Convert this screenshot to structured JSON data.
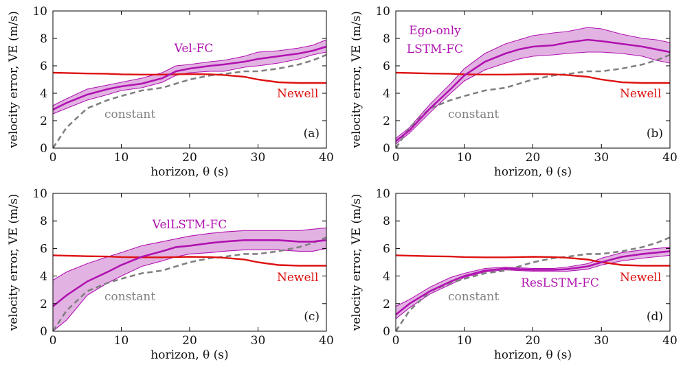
{
  "colors": {
    "model": "#b012b0",
    "band": "#e2b3e2",
    "newell": "#dd1111",
    "constant": "#808080"
  },
  "chart_data": [
    {
      "type": "line",
      "panel": "(a)",
      "xlabel": "horizon, θ (s)",
      "ylabel": "velocity error, VE (m/s)",
      "xlim": [
        0,
        40
      ],
      "ylim": [
        0,
        10
      ],
      "xticks": [
        0,
        10,
        20,
        30,
        40
      ],
      "yticks": [
        0,
        2,
        4,
        6,
        8,
        10
      ],
      "x": [
        0,
        2,
        5,
        8,
        10,
        13,
        16,
        18,
        20,
        23,
        25,
        28,
        30,
        33,
        36,
        38,
        40
      ],
      "series": [
        {
          "name": "Vel-FC",
          "role": "model",
          "values": [
            2.8,
            3.3,
            3.9,
            4.3,
            4.5,
            4.7,
            5.1,
            5.6,
            5.8,
            6.0,
            6.1,
            6.3,
            6.5,
            6.7,
            6.9,
            7.1,
            7.4
          ],
          "lower": [
            2.5,
            2.9,
            3.5,
            3.9,
            4.2,
            4.4,
            4.8,
            5.3,
            5.5,
            5.6,
            5.6,
            5.9,
            6.0,
            6.2,
            6.5,
            6.8,
            7.0
          ],
          "upper": [
            3.1,
            3.6,
            4.3,
            4.6,
            4.8,
            5.1,
            5.5,
            6.0,
            6.1,
            6.3,
            6.4,
            6.7,
            7.0,
            7.1,
            7.3,
            7.5,
            7.9
          ]
        },
        {
          "name": "Newell",
          "role": "newell",
          "values": [
            5.5,
            5.48,
            5.44,
            5.42,
            5.38,
            5.36,
            5.36,
            5.38,
            5.4,
            5.38,
            5.33,
            5.2,
            5.0,
            4.8,
            4.75,
            4.75,
            4.75
          ]
        },
        {
          "name": "constant",
          "role": "constant",
          "values": [
            0.0,
            1.5,
            2.9,
            3.5,
            3.8,
            4.2,
            4.4,
            4.7,
            5.0,
            5.3,
            5.4,
            5.6,
            5.6,
            5.8,
            6.1,
            6.4,
            6.8
          ]
        }
      ]
    },
    {
      "type": "line",
      "panel": "(b)",
      "xlabel": "horizon, θ (s)",
      "ylabel": "velocity error, VE (m/s)",
      "xlim": [
        0,
        40
      ],
      "ylim": [
        0,
        10
      ],
      "xticks": [
        0,
        10,
        20,
        30,
        40
      ],
      "yticks": [
        0,
        2,
        4,
        6,
        8,
        10
      ],
      "x": [
        0,
        2,
        5,
        8,
        10,
        13,
        16,
        18,
        20,
        23,
        25,
        28,
        30,
        33,
        36,
        38,
        40
      ],
      "series": [
        {
          "name": "Ego-only LSTM-FC",
          "role": "model",
          "values": [
            0.5,
            1.3,
            2.9,
            4.3,
            5.3,
            6.3,
            6.9,
            7.2,
            7.4,
            7.5,
            7.7,
            7.9,
            7.8,
            7.6,
            7.4,
            7.2,
            7.0
          ],
          "lower": [
            0.3,
            1.1,
            2.6,
            4.0,
            4.9,
            5.7,
            6.2,
            6.5,
            6.7,
            6.8,
            6.9,
            7.0,
            7.0,
            6.9,
            6.7,
            6.4,
            6.2
          ],
          "upper": [
            0.7,
            1.5,
            3.2,
            4.7,
            5.8,
            6.9,
            7.6,
            7.9,
            8.2,
            8.4,
            8.5,
            8.8,
            8.7,
            8.3,
            8.0,
            7.9,
            7.7
          ]
        },
        {
          "name": "Newell",
          "role": "newell",
          "values": [
            5.5,
            5.48,
            5.44,
            5.42,
            5.38,
            5.36,
            5.36,
            5.38,
            5.4,
            5.38,
            5.33,
            5.2,
            5.0,
            4.8,
            4.75,
            4.75,
            4.75
          ]
        },
        {
          "name": "constant",
          "role": "constant",
          "values": [
            0.0,
            1.5,
            2.9,
            3.5,
            3.8,
            4.2,
            4.4,
            4.7,
            5.0,
            5.3,
            5.4,
            5.6,
            5.6,
            5.8,
            6.1,
            6.4,
            6.8
          ]
        }
      ]
    },
    {
      "type": "line",
      "panel": "(c)",
      "xlabel": "horizon, θ (s)",
      "ylabel": "velocity error, VE (m/s)",
      "xlim": [
        0,
        40
      ],
      "ylim": [
        0,
        10
      ],
      "xticks": [
        0,
        10,
        20,
        30,
        40
      ],
      "yticks": [
        0,
        2,
        4,
        6,
        8,
        10
      ],
      "x": [
        0,
        2,
        5,
        8,
        10,
        13,
        16,
        18,
        20,
        23,
        25,
        28,
        30,
        33,
        36,
        38,
        40
      ],
      "series": [
        {
          "name": "VelLSTM-FC",
          "role": "model",
          "values": [
            1.8,
            2.6,
            3.6,
            4.3,
            4.8,
            5.4,
            5.8,
            6.1,
            6.2,
            6.4,
            6.5,
            6.6,
            6.6,
            6.6,
            6.5,
            6.5,
            6.6
          ],
          "lower": [
            0.0,
            0.8,
            2.6,
            3.5,
            4.0,
            4.7,
            5.1,
            5.4,
            5.6,
            5.7,
            5.8,
            5.9,
            5.9,
            5.9,
            5.8,
            5.8,
            6.0
          ],
          "upper": [
            3.7,
            4.3,
            4.9,
            5.4,
            5.7,
            6.2,
            6.5,
            6.7,
            6.9,
            7.1,
            7.2,
            7.3,
            7.3,
            7.3,
            7.3,
            7.4,
            7.5
          ]
        },
        {
          "name": "Newell",
          "role": "newell",
          "values": [
            5.5,
            5.48,
            5.44,
            5.42,
            5.38,
            5.36,
            5.36,
            5.38,
            5.4,
            5.38,
            5.33,
            5.2,
            5.0,
            4.8,
            4.75,
            4.75,
            4.75
          ]
        },
        {
          "name": "constant",
          "role": "constant",
          "values": [
            0.0,
            1.5,
            2.9,
            3.5,
            3.8,
            4.2,
            4.4,
            4.7,
            5.0,
            5.3,
            5.4,
            5.6,
            5.6,
            5.8,
            6.1,
            6.4,
            6.8
          ]
        }
      ]
    },
    {
      "type": "line",
      "panel": "(d)",
      "xlabel": "horizon, θ (s)",
      "ylabel": "velocity error, VE (m/s)",
      "xlim": [
        0,
        40
      ],
      "ylim": [
        0,
        10
      ],
      "xticks": [
        0,
        10,
        20,
        30,
        40
      ],
      "yticks": [
        0,
        2,
        4,
        6,
        8,
        10
      ],
      "x": [
        0,
        2,
        5,
        8,
        10,
        13,
        16,
        18,
        20,
        23,
        25,
        28,
        30,
        33,
        36,
        38,
        40
      ],
      "series": [
        {
          "name": "ResLSTM-FC",
          "role": "model",
          "values": [
            1.2,
            2.0,
            2.9,
            3.6,
            4.0,
            4.4,
            4.55,
            4.5,
            4.45,
            4.45,
            4.5,
            4.7,
            5.0,
            5.4,
            5.6,
            5.7,
            5.8
          ],
          "lower": [
            0.9,
            1.7,
            2.7,
            3.4,
            3.9,
            4.3,
            4.45,
            4.4,
            4.35,
            4.35,
            4.35,
            4.5,
            4.8,
            5.1,
            5.3,
            5.4,
            5.5
          ],
          "upper": [
            1.8,
            2.3,
            3.2,
            3.9,
            4.2,
            4.55,
            4.65,
            4.6,
            4.55,
            4.55,
            4.65,
            4.9,
            5.3,
            5.7,
            5.9,
            6.0,
            6.1
          ]
        },
        {
          "name": "Newell",
          "role": "newell",
          "values": [
            5.5,
            5.48,
            5.44,
            5.42,
            5.38,
            5.36,
            5.36,
            5.38,
            5.4,
            5.38,
            5.33,
            5.2,
            5.0,
            4.8,
            4.75,
            4.75,
            4.75
          ]
        },
        {
          "name": "constant",
          "role": "constant",
          "values": [
            0.0,
            1.5,
            2.9,
            3.5,
            3.8,
            4.2,
            4.4,
            4.7,
            5.0,
            5.3,
            5.4,
            5.6,
            5.6,
            5.8,
            6.1,
            6.4,
            6.8
          ]
        }
      ]
    }
  ]
}
